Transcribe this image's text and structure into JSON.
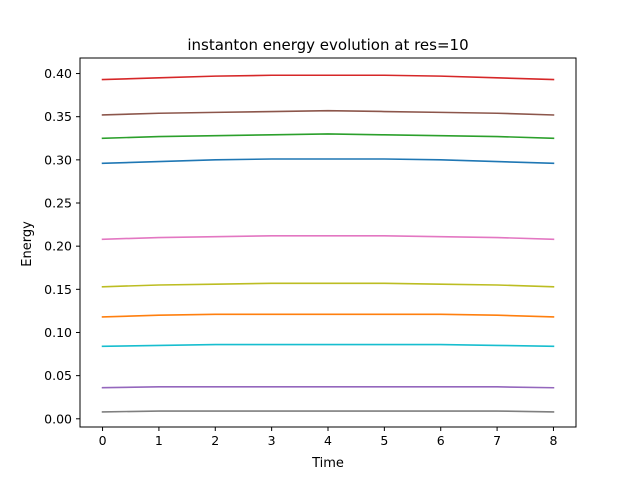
{
  "chart_data": {
    "type": "line",
    "title": "instanton energy evolution at res=10",
    "xlabel": "Time",
    "ylabel": "Energy",
    "xlim": [
      -0.4,
      8.4
    ],
    "ylim": [
      -0.0095,
      0.418
    ],
    "x": [
      0,
      1,
      2,
      3,
      4,
      5,
      6,
      7,
      8
    ],
    "xticks": [
      "0",
      "1",
      "2",
      "3",
      "4",
      "5",
      "6",
      "7",
      "8"
    ],
    "yticks": [
      "0.00",
      "0.05",
      "0.10",
      "0.15",
      "0.20",
      "0.25",
      "0.30",
      "0.35",
      "0.40"
    ],
    "grid": false,
    "legend": "none",
    "series": [
      {
        "color": "#d62728",
        "values": [
          0.393,
          0.395,
          0.397,
          0.398,
          0.398,
          0.398,
          0.397,
          0.395,
          0.393
        ]
      },
      {
        "color": "#8c564b",
        "values": [
          0.352,
          0.354,
          0.355,
          0.356,
          0.357,
          0.356,
          0.355,
          0.354,
          0.352
        ]
      },
      {
        "color": "#2ca02c",
        "values": [
          0.325,
          0.327,
          0.328,
          0.329,
          0.33,
          0.329,
          0.328,
          0.327,
          0.325
        ]
      },
      {
        "color": "#1f77b4",
        "values": [
          0.296,
          0.298,
          0.3,
          0.301,
          0.301,
          0.301,
          0.3,
          0.298,
          0.296
        ]
      },
      {
        "color": "#e377c2",
        "values": [
          0.208,
          0.21,
          0.211,
          0.212,
          0.212,
          0.212,
          0.211,
          0.21,
          0.208
        ]
      },
      {
        "color": "#bcbd22",
        "values": [
          0.153,
          0.155,
          0.156,
          0.157,
          0.157,
          0.157,
          0.156,
          0.155,
          0.153
        ]
      },
      {
        "color": "#ff7f0e",
        "values": [
          0.118,
          0.12,
          0.121,
          0.121,
          0.121,
          0.121,
          0.121,
          0.12,
          0.118
        ]
      },
      {
        "color": "#17becf",
        "values": [
          0.084,
          0.085,
          0.086,
          0.086,
          0.086,
          0.086,
          0.086,
          0.085,
          0.084
        ]
      },
      {
        "color": "#9467bd",
        "values": [
          0.036,
          0.037,
          0.037,
          0.037,
          0.037,
          0.037,
          0.037,
          0.037,
          0.036
        ]
      },
      {
        "color": "#7f7f7f",
        "values": [
          0.008,
          0.009,
          0.009,
          0.009,
          0.009,
          0.009,
          0.009,
          0.009,
          0.008
        ]
      }
    ]
  }
}
